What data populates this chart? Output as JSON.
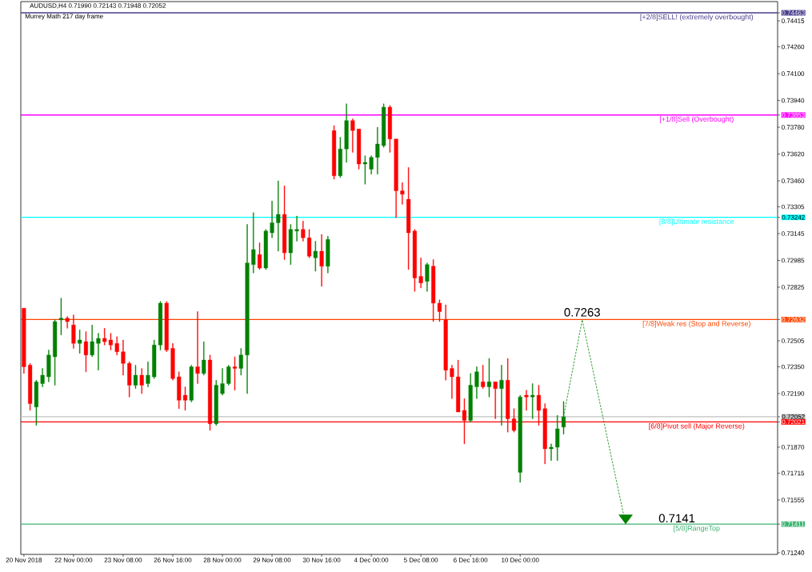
{
  "chart_data": {
    "type": "candlestick",
    "title": "AUDUSD,H4  0.71990 0.72143 0.71948 0.72052",
    "subtitle": "Murrey Math 217 day frame",
    "categories": [
      "20 Nov 2018",
      null,
      null,
      null,
      null,
      null,
      null,
      null,
      "22 Nov 00:00",
      null,
      null,
      null,
      null,
      null,
      null,
      null,
      "23 Nov 08:00",
      null,
      null,
      null,
      null,
      null,
      null,
      null,
      "26 Nov 16:00",
      null,
      null,
      null,
      null,
      null,
      null,
      null,
      "28 Nov 00:00",
      null,
      null,
      null,
      null,
      null,
      null,
      null,
      "29 Nov 08:00",
      null,
      null,
      null,
      null,
      null,
      null,
      null,
      "30 Nov 16:00",
      null,
      null,
      null,
      null,
      null,
      null,
      null,
      "4 Dec 00:00",
      null,
      null,
      null,
      null,
      null,
      null,
      null,
      "5 Dec 08:00",
      null,
      null,
      null,
      null,
      null,
      null,
      null,
      "6 Dec 16:00",
      null,
      null,
      null,
      null,
      null,
      null,
      null,
      "10 Dec 00:00",
      null,
      null,
      null,
      null,
      null,
      null,
      null,
      null,
      null,
      null,
      null,
      null,
      null,
      null,
      null,
      null,
      null,
      null,
      null,
      null,
      null,
      null,
      null,
      null,
      null,
      null,
      null,
      null,
      null,
      null,
      null,
      null,
      null,
      null,
      null,
      null,
      null,
      null,
      null,
      null,
      null
    ],
    "ohlc": [
      [
        0.727,
        0.727,
        0.7231,
        0.7235
      ],
      [
        0.7236,
        0.7237,
        0.7209,
        0.7213
      ],
      [
        0.7211,
        0.7227,
        0.72,
        0.7226
      ],
      [
        0.7225,
        0.7234,
        0.7223,
        0.723
      ],
      [
        0.7229,
        0.7245,
        0.7226,
        0.7242
      ],
      [
        0.7241,
        0.7263,
        0.7224,
        0.7262
      ],
      [
        0.7263,
        0.7276,
        0.7254,
        0.7264
      ],
      [
        0.7264,
        0.7265,
        0.7258,
        0.7262
      ],
      [
        0.726,
        0.7266,
        0.7246,
        0.7249
      ],
      [
        0.7249,
        0.7257,
        0.7243,
        0.7251
      ],
      [
        0.725,
        0.7256,
        0.7232,
        0.7242
      ],
      [
        0.7242,
        0.726,
        0.7241,
        0.725
      ],
      [
        0.7249,
        0.7255,
        0.7233,
        0.7252
      ],
      [
        0.7252,
        0.7258,
        0.7248,
        0.725
      ],
      [
        0.7251,
        0.7255,
        0.7245,
        0.7248
      ],
      [
        0.7249,
        0.7253,
        0.7242,
        0.7244
      ],
      [
        0.7244,
        0.7251,
        0.723,
        0.7237
      ],
      [
        0.7237,
        0.7238,
        0.7217,
        0.7224
      ],
      [
        0.7224,
        0.7236,
        0.7222,
        0.723
      ],
      [
        0.723,
        0.7234,
        0.7219,
        0.7224
      ],
      [
        0.7225,
        0.7238,
        0.7223,
        0.723
      ],
      [
        0.7229,
        0.7251,
        0.7228,
        0.7248
      ],
      [
        0.7248,
        0.7274,
        0.7245,
        0.7273
      ],
      [
        0.7273,
        0.7274,
        0.7244,
        0.7245
      ],
      [
        0.7246,
        0.7249,
        0.7227,
        0.7228
      ],
      [
        0.7229,
        0.7232,
        0.721,
        0.7215
      ],
      [
        0.7218,
        0.7223,
        0.7209,
        0.7215
      ],
      [
        0.7215,
        0.7236,
        0.7214,
        0.7235
      ],
      [
        0.7235,
        0.7268,
        0.7225,
        0.7231
      ],
      [
        0.7231,
        0.725,
        0.723,
        0.7239
      ],
      [
        0.7239,
        0.7242,
        0.7197,
        0.7201
      ],
      [
        0.7201,
        0.7227,
        0.72,
        0.7224
      ],
      [
        0.7219,
        0.7234,
        0.7218,
        0.7225
      ],
      [
        0.7225,
        0.7236,
        0.7224,
        0.7235
      ],
      [
        0.7235,
        0.7241,
        0.7221,
        0.7234
      ],
      [
        0.7234,
        0.7246,
        0.723,
        0.7242
      ],
      [
        0.7242,
        0.732,
        0.7219,
        0.7297
      ],
      [
        0.7296,
        0.7327,
        0.7291,
        0.7305
      ],
      [
        0.7302,
        0.7309,
        0.7293,
        0.7294
      ],
      [
        0.7294,
        0.7317,
        0.7293,
        0.7316
      ],
      [
        0.7315,
        0.7334,
        0.7312,
        0.7321
      ],
      [
        0.7321,
        0.7346,
        0.7304,
        0.7326
      ],
      [
        0.7326,
        0.7343,
        0.7299,
        0.7303
      ],
      [
        0.7303,
        0.732,
        0.7296,
        0.7317
      ],
      [
        0.7316,
        0.7325,
        0.731,
        0.7317
      ],
      [
        0.7317,
        0.7322,
        0.731,
        0.7312
      ],
      [
        0.7312,
        0.7317,
        0.73,
        0.7301
      ],
      [
        0.73,
        0.731,
        0.7292,
        0.7304
      ],
      [
        0.7304,
        0.7314,
        0.7283,
        0.7295
      ],
      [
        0.7295,
        0.7313,
        0.7291,
        0.7311
      ],
      [
        0.7376,
        0.7379,
        0.7347,
        0.7349
      ],
      [
        0.7349,
        0.7372,
        0.7348,
        0.7365
      ],
      [
        0.7365,
        0.7392,
        0.7357,
        0.7382
      ],
      [
        0.7382,
        0.7383,
        0.7363,
        0.7376
      ],
      [
        0.7377,
        0.7377,
        0.7353,
        0.7356
      ],
      [
        0.7356,
        0.7361,
        0.7344,
        0.7357
      ],
      [
        0.7353,
        0.7361,
        0.735,
        0.736
      ],
      [
        0.736,
        0.7378,
        0.735,
        0.7368
      ],
      [
        0.7367,
        0.7392,
        0.7366,
        0.739
      ],
      [
        0.739,
        0.7391,
        0.7363,
        0.7371
      ],
      [
        0.7371,
        0.7371,
        0.7324,
        0.734
      ],
      [
        0.734,
        0.7345,
        0.7332,
        0.7338
      ],
      [
        0.7335,
        0.7354,
        0.7293,
        0.7315
      ],
      [
        0.7316,
        0.7317,
        0.728,
        0.7288
      ],
      [
        0.7289,
        0.73,
        0.7282,
        0.7285
      ],
      [
        0.7286,
        0.7297,
        0.728,
        0.7296
      ],
      [
        0.7295,
        0.7299,
        0.7262,
        0.7273
      ],
      [
        0.7273,
        0.7275,
        0.7262,
        0.7268
      ],
      [
        0.7263,
        0.7272,
        0.7227,
        0.7233
      ],
      [
        0.7234,
        0.7236,
        0.7216,
        0.7229
      ],
      [
        0.7229,
        0.7239,
        0.7208,
        0.7208
      ],
      [
        0.7209,
        0.7216,
        0.7189,
        0.7203
      ],
      [
        0.7203,
        0.7231,
        0.7202,
        0.7224
      ],
      [
        0.7223,
        0.7235,
        0.7216,
        0.7232
      ],
      [
        0.7226,
        0.7236,
        0.7222,
        0.7223
      ],
      [
        0.7223,
        0.724,
        0.7217,
        0.7226
      ],
      [
        0.7226,
        0.7226,
        0.7204,
        0.7222
      ],
      [
        0.7222,
        0.7236,
        0.72,
        0.7227
      ],
      [
        0.7227,
        0.724,
        0.7196,
        0.7204
      ],
      [
        0.7204,
        0.721,
        0.7196,
        0.7197
      ],
      [
        0.7172,
        0.7218,
        0.7166,
        0.7217
      ],
      [
        0.7218,
        0.7221,
        0.7209,
        0.7217
      ],
      [
        0.7217,
        0.7225,
        0.7204,
        0.7218
      ],
      [
        0.7218,
        0.7224,
        0.72,
        0.7209
      ],
      [
        0.721,
        0.7213,
        0.7177,
        0.7186
      ],
      [
        0.7186,
        0.7189,
        0.7179,
        0.7187
      ],
      [
        0.7187,
        0.7206,
        0.7179,
        0.7198
      ],
      [
        0.7199,
        0.72143,
        0.71948,
        0.72052
      ],
      null,
      null,
      null,
      null,
      null,
      null,
      null,
      null,
      null,
      null,
      null,
      null,
      null,
      null,
      null,
      null,
      null,
      null,
      null,
      null,
      null,
      null,
      null,
      null,
      null,
      null,
      null,
      null,
      null,
      null,
      null,
      null,
      null,
      null
    ],
    "colors": [
      "#ff0000",
      "#ff0000",
      "#008000",
      "#008000",
      "#008000",
      "#008000",
      "#008000",
      "#ff0000",
      "#ff0000",
      "#008000",
      "#ff0000",
      "#008000",
      "#008000",
      "#ff0000",
      "#ff0000",
      "#ff0000",
      "#ff0000",
      "#ff0000",
      "#008000",
      "#ff0000",
      "#008000",
      "#008000",
      "#008000",
      "#ff0000",
      "#ff0000",
      "#ff0000",
      "#ff0000",
      "#008000",
      "#ff0000",
      "#008000",
      "#ff0000",
      "#008000",
      "#008000",
      "#008000",
      "#ff0000",
      "#008000",
      "#008000",
      "#008000",
      "#ff0000",
      "#008000",
      "#008000",
      "#008000",
      "#ff0000",
      "#008000",
      "#008000",
      "#ff0000",
      "#ff0000",
      "#008000",
      "#ff0000",
      "#008000",
      "#ff0000",
      "#008000",
      "#008000",
      "#ff0000",
      "#ff0000",
      "#008000",
      "#008000",
      "#008000",
      "#008000",
      "#ff0000",
      "#ff0000",
      "#ff0000",
      "#ff0000",
      "#ff0000",
      "#ff0000",
      "#008000",
      "#ff0000",
      "#ff0000",
      "#ff0000",
      "#ff0000",
      "#ff0000",
      "#ff0000",
      "#008000",
      "#008000",
      "#ff0000",
      "#008000",
      "#ff0000",
      "#008000",
      "#ff0000",
      "#ff0000",
      "#008000",
      "#ff0000",
      "#008000",
      "#ff0000",
      "#ff0000",
      "#008000",
      "#008000",
      "#008000",
      null,
      null,
      null,
      null,
      null,
      null,
      null,
      null,
      null,
      null,
      null,
      null,
      null,
      null,
      null,
      null,
      null,
      null,
      null,
      null,
      null,
      null,
      null,
      null,
      null,
      null,
      null,
      null,
      null,
      null,
      null,
      null,
      null,
      null
    ],
    "series": [
      {
        "type": "line",
        "color": "#008000",
        "line_style": "dashed",
        "values": [
          null,
          null,
          null,
          null,
          null,
          null,
          null,
          null,
          null,
          null,
          null,
          null,
          null,
          null,
          null,
          null,
          null,
          null,
          null,
          null,
          null,
          null,
          null,
          null,
          null,
          null,
          null,
          null,
          null,
          null,
          null,
          null,
          null,
          null,
          null,
          null,
          null,
          null,
          null,
          null,
          null,
          null,
          null,
          null,
          null,
          null,
          null,
          null,
          null,
          null,
          null,
          null,
          null,
          null,
          null,
          null,
          null,
          null,
          null,
          null,
          null,
          null,
          null,
          null,
          null,
          null,
          null,
          null,
          null,
          null,
          null,
          null,
          null,
          null,
          null,
          null,
          null,
          null,
          null,
          null,
          null,
          null,
          null,
          null,
          null,
          null,
          null,
          0.72052,
          null,
          null,
          0.7263,
          null,
          null,
          null,
          null,
          null,
          null,
          0.7141,
          null,
          null,
          null,
          null,
          null,
          null,
          null,
          null,
          null,
          null,
          null,
          null,
          null,
          null,
          null,
          null,
          null,
          null,
          null,
          null,
          null,
          null,
          null,
          null
        ]
      }
    ],
    "ylim": [
      0.7123,
      0.7453
    ],
    "yticks": [
      {
        "value": 0.74463,
        "label": "0.74463"
      },
      {
        "value": 0.74415,
        "label": "0.74415"
      },
      {
        "value": 0.7426,
        "label": "0.74260"
      },
      {
        "value": 0.741,
        "label": "0.74100"
      },
      {
        "value": 0.7394,
        "label": "0.73940"
      },
      {
        "value": 0.73853,
        "label": "0.73853"
      },
      {
        "value": 0.7378,
        "label": "0.73780"
      },
      {
        "value": 0.7362,
        "label": "0.73620"
      },
      {
        "value": 0.7346,
        "label": "0.73460"
      },
      {
        "value": 0.73305,
        "label": "0.73305"
      },
      {
        "value": 0.73242,
        "label": "0.73242"
      },
      {
        "value": 0.73145,
        "label": "0.73145"
      },
      {
        "value": 0.72985,
        "label": "0.72985"
      },
      {
        "value": 0.72825,
        "label": "0.72825"
      },
      {
        "value": 0.72632,
        "label": "0.72632"
      },
      {
        "value": 0.72505,
        "label": "0.72505"
      },
      {
        "value": 0.7235,
        "label": "0.72350"
      },
      {
        "value": 0.7219,
        "label": "0.72190"
      },
      {
        "value": 0.72052,
        "label": "0.72052"
      },
      {
        "value": 0.72021,
        "label": "0.72021"
      },
      {
        "value": 0.7187,
        "label": "0.71870"
      },
      {
        "value": 0.71715,
        "label": "0.71715"
      },
      {
        "value": 0.71555,
        "label": "0.71555"
      },
      {
        "value": 0.71411,
        "label": "0.71411"
      },
      {
        "value": 0.7124,
        "label": "0.71240"
      }
    ],
    "ref_lines": [
      {
        "axis": "y",
        "value": 0.74463,
        "label": "[+2/8]SELL! (extremely overbought)",
        "color": "#483d8b"
      },
      {
        "axis": "y",
        "value": 0.73853,
        "label": "[+1/8]Sell (Overbought)",
        "color": "#ff00ff"
      },
      {
        "axis": "y",
        "value": 0.73242,
        "label": "[8/8]Ultimate resistance",
        "color": "#00ffff"
      },
      {
        "axis": "y",
        "value": 0.72632,
        "label": "[7/8]Weak res (Stop and Reverse)",
        "color": "#ff4500"
      },
      {
        "axis": "y",
        "value": 0.72052,
        "color": "#c0c0c0"
      },
      {
        "axis": "y",
        "value": 0.72021,
        "label": "[6/8]Pivot sell (Major Reverse)",
        "color": "#ff0000"
      },
      {
        "axis": "y",
        "value": 0.71411,
        "label": "[5/8]RangeTop",
        "color": "#3cb371"
      }
    ],
    "annotations": [
      {
        "text": "0.7263",
        "y": 0.7263
      },
      {
        "text": "0.7141",
        "y": 0.7141
      }
    ]
  }
}
